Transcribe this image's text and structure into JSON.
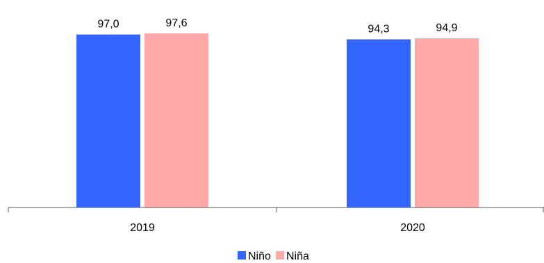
{
  "chart_data": {
    "type": "bar",
    "title": "",
    "xlabel": "",
    "ylabel": "",
    "categories": [
      "2019",
      "2020"
    ],
    "series": [
      {
        "name": "Niño",
        "color": "#3366ff",
        "values": [
          97.0,
          94.3
        ],
        "labels": [
          "97,0",
          "94,3"
        ]
      },
      {
        "name": "Niña",
        "color": "#ffa8a8",
        "values": [
          97.6,
          94.9
        ],
        "labels": [
          "97,6",
          "94,9"
        ]
      }
    ],
    "ylim": [
      0,
      100
    ],
    "grid": false,
    "legend_position": "bottom"
  }
}
